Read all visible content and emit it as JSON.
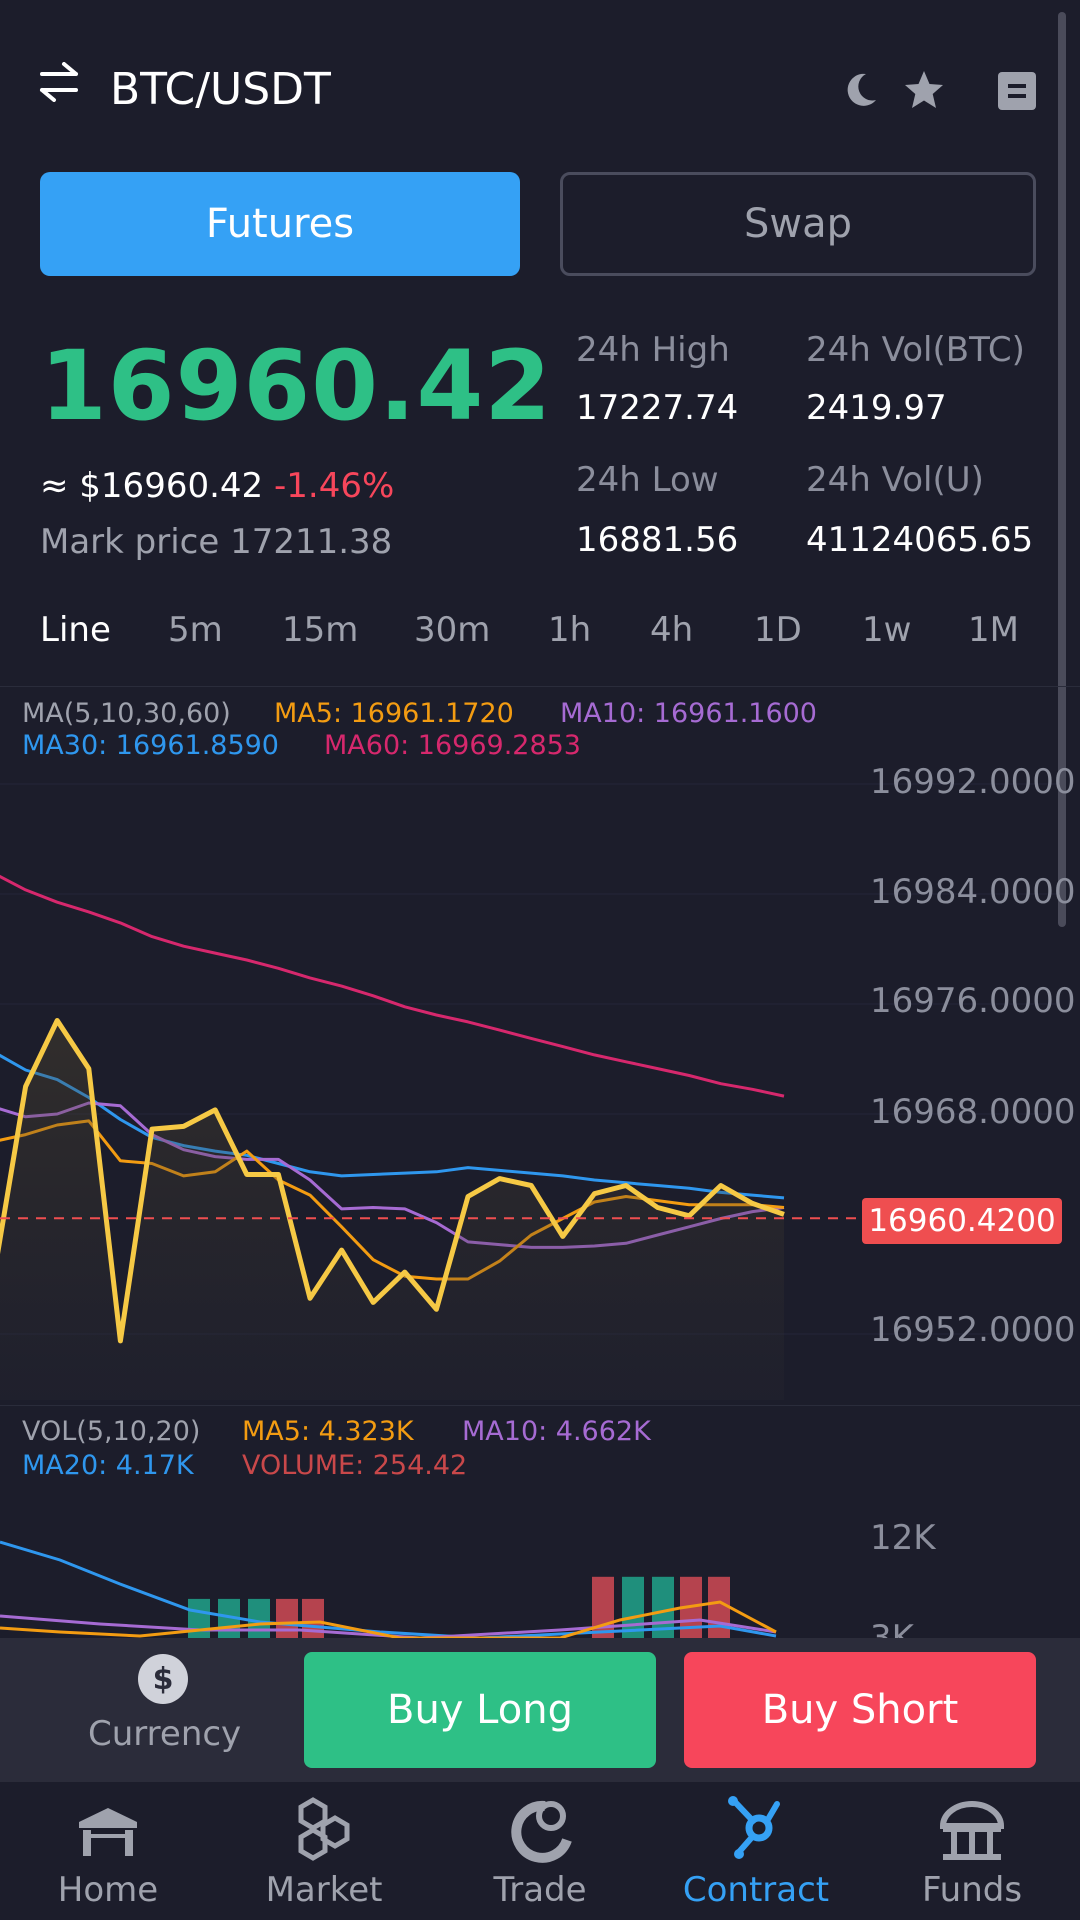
{
  "header": {
    "pair": "BTC/USDT",
    "icons": [
      "swap-arrows-icon",
      "moon-icon",
      "star-icon",
      "menu-icon"
    ]
  },
  "tabs": {
    "futures": "Futures",
    "swap": "Swap",
    "active": "Futures"
  },
  "ticker": {
    "price": "16960.42",
    "approx": "≈ $16960.42",
    "change": "-1.46%",
    "mark_price": "Mark price 17211.38",
    "high_label": "24h High",
    "high_value": "17227.74",
    "low_label": "24h Low",
    "low_value": "16881.56",
    "vol_btc_label": "24h Vol(BTC)",
    "vol_btc_value": "2419.97",
    "vol_u_label": "24h Vol(U)",
    "vol_u_value": "41124065.65"
  },
  "intervals": [
    "Line",
    "5m",
    "15m",
    "30m",
    "1h",
    "4h",
    "1D",
    "1w",
    "1M"
  ],
  "active_interval": "Line",
  "main_legend": {
    "ma_title": "MA(5,10,30,60)",
    "ma5": "MA5: 16961.1720",
    "ma10": "MA10: 16961.1600",
    "ma30": "MA30: 16961.8590",
    "ma60": "MA60: 16969.2853"
  },
  "vol_legend": {
    "vol_title": "VOL(5,10,20)",
    "ma5": "MA5: 4.323K",
    "ma10": "MA10: 4.662K",
    "ma20": "MA20: 4.17K",
    "volume": "VOLUME: 254.42"
  },
  "colors": {
    "price_line": "#f6c945",
    "ma5": "#f39c12",
    "ma10": "#a66bd3",
    "ma30": "#2f97ee",
    "ma60": "#d6286d",
    "up": "#2ec086",
    "down": "#f7465b",
    "accent": "#35a1f5"
  },
  "chart_data": {
    "type": "line",
    "y_ticks": [
      "16992.0000",
      "16984.0000",
      "16976.0000",
      "16968.0000",
      "16952.0000"
    ],
    "ylim": [
      16950,
      16993
    ],
    "current_price_label": "16960.4200",
    "current_price": 16960.42,
    "series": [
      {
        "name": "Price",
        "values": [
          16956.3,
          16970.0,
          16974.8,
          16971.3,
          16951.5,
          16966.9,
          16967.1,
          16968.3,
          16963.6,
          16963.6,
          16954.6,
          16958.1,
          16954.3,
          16956.5,
          16953.8,
          16962.0,
          16963.3,
          16962.8,
          16959.1,
          16962.2,
          16962.8,
          16961.2,
          16960.6,
          16962.8,
          16961.5,
          16960.7
        ]
      },
      {
        "name": "MA5",
        "values": [
          16966.0,
          16966.5,
          16967.2,
          16967.5,
          16964.6,
          16964.4,
          16963.5,
          16963.8,
          16965.3,
          16963.2,
          16962.1,
          16959.8,
          16957.4,
          16956.2,
          16956.0,
          16956.0,
          16957.3,
          16959.2,
          16960.4,
          16961.6,
          16962.0,
          16961.7,
          16961.4,
          16961.4,
          16961.4,
          16961.2
        ]
      },
      {
        "name": "MA10",
        "values": [
          16968.5,
          16967.8,
          16968.0,
          16968.8,
          16968.6,
          16966.5,
          16965.4,
          16964.9,
          16964.7,
          16964.7,
          16963.2,
          16961.1,
          16961.2,
          16961.1,
          16960.1,
          16958.7,
          16958.5,
          16958.3,
          16958.3,
          16958.4,
          16958.6,
          16959.2,
          16959.8,
          16960.4,
          16960.9,
          16961.2
        ]
      },
      {
        "name": "MA30",
        "values": [
          16972.5,
          16971.2,
          16970.5,
          16969.2,
          16967.6,
          16966.3,
          16965.7,
          16965.3,
          16965.0,
          16964.4,
          16963.8,
          16963.5,
          16963.6,
          16963.7,
          16963.8,
          16964.1,
          16963.9,
          16963.7,
          16963.5,
          16963.2,
          16963.0,
          16962.8,
          16962.6,
          16962.3,
          16962.1,
          16961.9
        ]
      },
      {
        "name": "MA60",
        "values": [
          16985.5,
          16984.3,
          16983.4,
          16982.7,
          16981.9,
          16980.9,
          16980.2,
          16979.7,
          16979.2,
          16978.6,
          16977.9,
          16977.3,
          16976.6,
          16975.8,
          16975.2,
          16974.7,
          16974.1,
          16973.5,
          16972.9,
          16972.3,
          16971.8,
          16971.3,
          16970.8,
          16970.2,
          16969.8,
          16969.3
        ]
      }
    ],
    "volume_chart": {
      "y_ticks": [
        "12K",
        "3K"
      ],
      "bars": [
        {
          "value": 2.3,
          "dir": "up"
        },
        {
          "value": 2.3,
          "dir": "up"
        },
        {
          "value": 2.3,
          "dir": "up"
        },
        {
          "value": 2.3,
          "dir": "down"
        },
        {
          "value": 2.3,
          "dir": "down"
        },
        {
          "value": 3.6,
          "dir": "down"
        },
        {
          "value": 3.6,
          "dir": "up"
        },
        {
          "value": 3.6,
          "dir": "up"
        },
        {
          "value": 3.6,
          "dir": "down"
        },
        {
          "value": 3.6,
          "dir": "down"
        }
      ]
    }
  },
  "action_bar": {
    "currency_label": "Currency",
    "buy_long": "Buy Long",
    "buy_short": "Buy Short"
  },
  "nav": [
    {
      "label": "Home",
      "icon": "home-icon"
    },
    {
      "label": "Market",
      "icon": "market-icon"
    },
    {
      "label": "Trade",
      "icon": "trade-icon"
    },
    {
      "label": "Contract",
      "icon": "contract-icon"
    },
    {
      "label": "Funds",
      "icon": "funds-icon"
    }
  ],
  "active_nav": "Contract"
}
